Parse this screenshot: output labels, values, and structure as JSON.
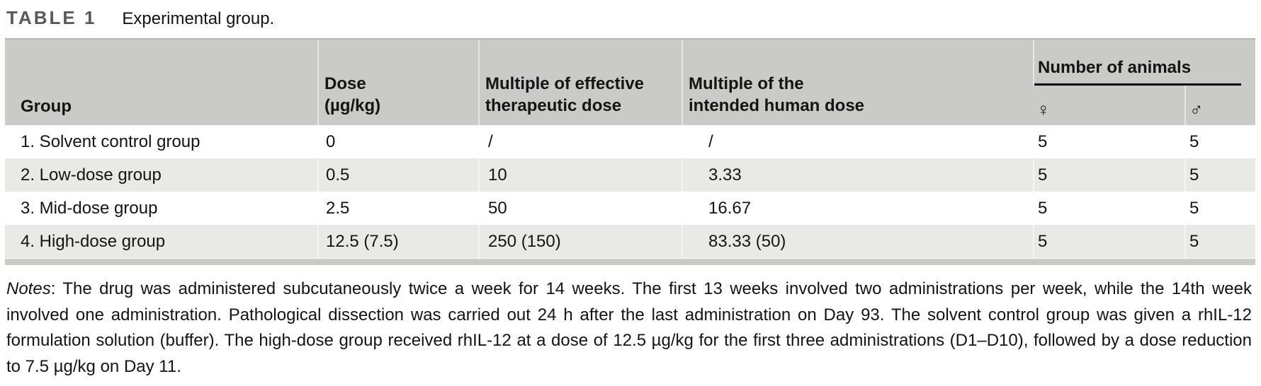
{
  "title": {
    "label": "TABLE 1",
    "caption": "Experimental group."
  },
  "table": {
    "headers": {
      "group": "Group",
      "dose": "Dose\n(µg/kg)",
      "multiple_effective": "Multiple of effective\ntherapeutic dose",
      "multiple_human": "Multiple of the\nintended human dose",
      "animals_group": "Number of animals",
      "female": "♀",
      "male": "♂"
    },
    "rows": [
      {
        "group": "1. Solvent control group",
        "dose": "0",
        "multiple_effective": "/",
        "multiple_human": "/",
        "female": "5",
        "male": "5"
      },
      {
        "group": "2. Low-dose group",
        "dose": "0.5",
        "multiple_effective": "10",
        "multiple_human": "3.33",
        "female": "5",
        "male": "5"
      },
      {
        "group": "3. Mid-dose group",
        "dose": "2.5",
        "multiple_effective": "50",
        "multiple_human": "16.67",
        "female": "5",
        "male": "5"
      },
      {
        "group": "4. High-dose group",
        "dose": "12.5 (7.5)",
        "multiple_effective": "250 (150)",
        "multiple_human": "83.33 (50)",
        "female": "5",
        "male": "5"
      }
    ]
  },
  "notes": {
    "label": "Notes",
    "text": ": The drug was administered subcutaneously twice a week for 14 weeks. The first 13 weeks involved two administrations per week, while the 14th week involved one administration. Pathological dissection was carried out 24 h after the last administration on Day 93. The solvent control group was given a rhIL-12 formulation solution (buffer). The high-dose group received rhIL-12 at a dose of 12.5 µg/kg for the first three administrations (D1–D10), followed by a dose reduction to 7.5 µg/kg on Day 11."
  }
}
